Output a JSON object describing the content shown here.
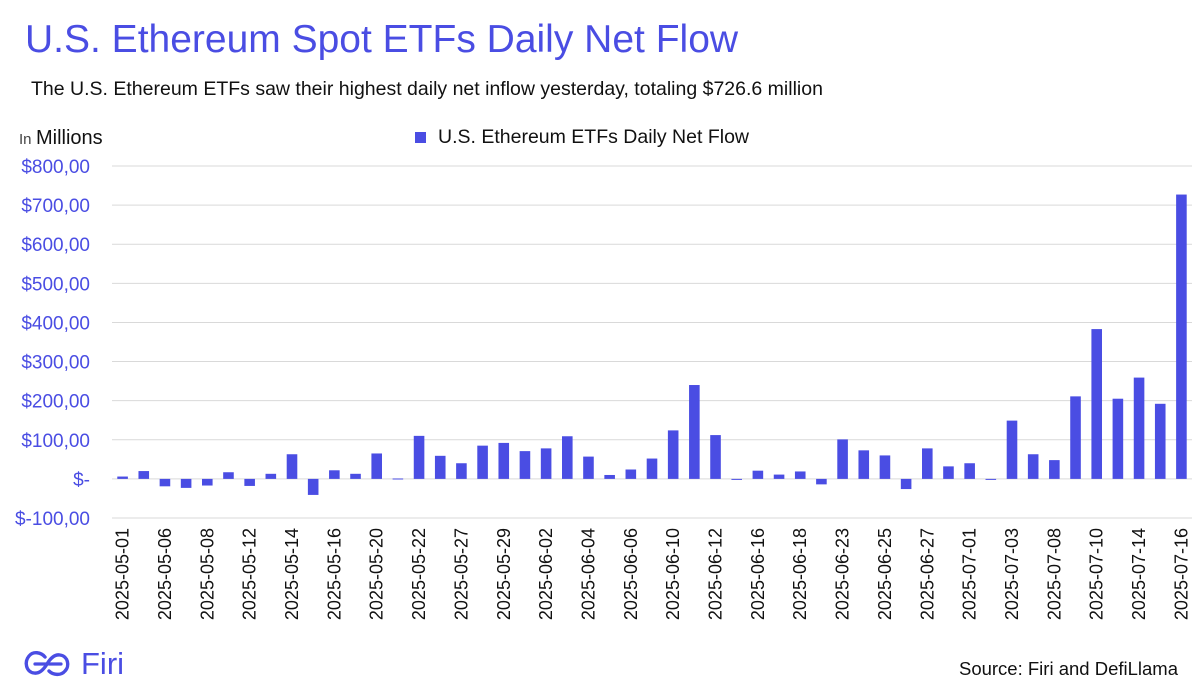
{
  "title": "U.S. Ethereum Spot ETFs Daily Net Flow",
  "subtitle": "The U.S. Ethereum ETFs saw their highest daily net inflow yesterday, totaling $726.6 million",
  "units_prefix": "In",
  "units_label": "Millions",
  "source": "Source: Firi and DefiLlama",
  "brand": {
    "name": "Firi",
    "logo_icon": "firi-logo-icon"
  },
  "colors": {
    "accent": "#4a4de3",
    "bar": "#4a4de3",
    "grid": "#d9d9d9"
  },
  "chart_data": {
    "type": "bar",
    "title": "U.S. Ethereum Spot ETFs Daily Net Flow",
    "ylabel": "Millions",
    "ylim": [
      -100,
      800
    ],
    "grid": true,
    "legend_position": "top-center",
    "yticks": [
      {
        "value": 800,
        "label": "$800,00"
      },
      {
        "value": 700,
        "label": "$700,00"
      },
      {
        "value": 600,
        "label": "$600,00"
      },
      {
        "value": 500,
        "label": "$500,00"
      },
      {
        "value": 400,
        "label": "$400,00"
      },
      {
        "value": 300,
        "label": "$300,00"
      },
      {
        "value": 200,
        "label": "$200,00"
      },
      {
        "value": 100,
        "label": "$100,00"
      },
      {
        "value": 0,
        "label": "$-"
      },
      {
        "value": -100,
        "label": "$-100,00"
      }
    ],
    "xtick_labels": [
      "2025-05-01",
      "2025-05-06",
      "2025-05-08",
      "2025-05-12",
      "2025-05-14",
      "2025-05-16",
      "2025-05-20",
      "2025-05-22",
      "2025-05-27",
      "2025-05-29",
      "2025-06-02",
      "2025-06-04",
      "2025-06-06",
      "2025-06-10",
      "2025-06-12",
      "2025-06-16",
      "2025-06-18",
      "2025-06-23",
      "2025-06-25",
      "2025-06-27",
      "2025-07-01",
      "2025-07-03",
      "2025-07-08",
      "2025-07-10",
      "2025-07-14",
      "2025-07-16"
    ],
    "series": [
      {
        "name": "U.S. Ethereum ETFs Daily Net Flow",
        "values": [
          6,
          20,
          -19,
          -23,
          -17,
          17,
          -18,
          13,
          63,
          -41,
          22,
          13,
          65,
          1,
          110,
          59,
          40,
          85,
          92,
          71,
          78,
          109,
          57,
          10,
          24,
          52,
          124,
          240,
          112,
          -2,
          21,
          11,
          19,
          -14,
          101,
          73,
          60,
          -26,
          78,
          32,
          40,
          -2,
          149,
          63,
          48,
          211,
          383,
          205,
          259,
          192,
          727
        ]
      }
    ]
  }
}
